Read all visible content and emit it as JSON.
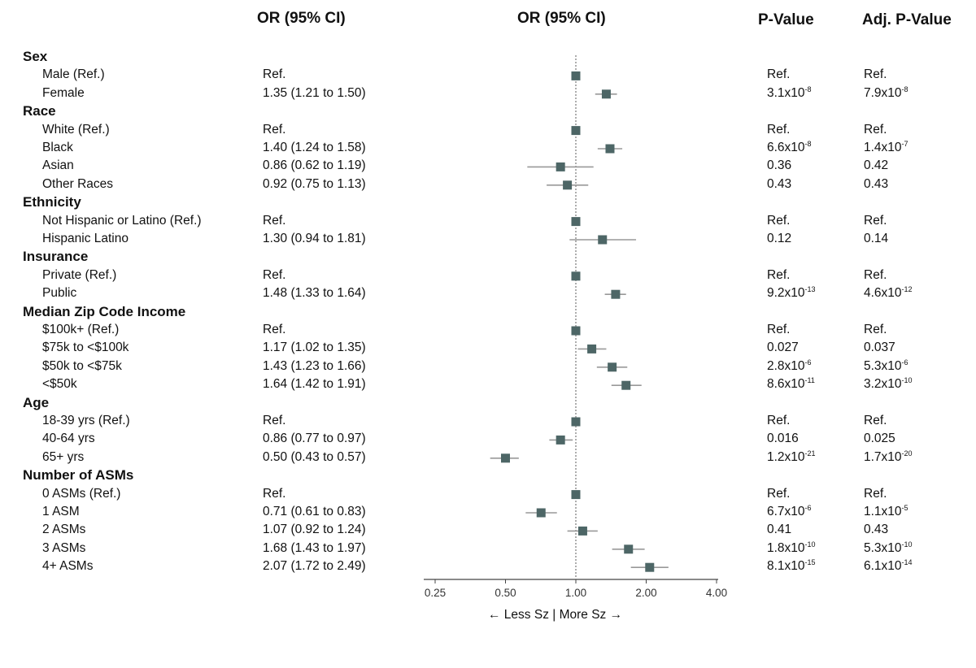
{
  "headers": {
    "or_text": "OR (95% CI)",
    "or_plot": "OR (95% CI)",
    "p_value": "P-Value",
    "adj_p_value": "Adj. P-Value"
  },
  "axis_note": "←   Less Sz | More Sz   →",
  "chart_data": {
    "type": "forest",
    "x_scale": "log2",
    "xlim": [
      0.25,
      4.0
    ],
    "x_ticks": [
      "0.25",
      "0.50",
      "1.00",
      "2.00",
      "4.00"
    ],
    "x_tick_values": [
      0.25,
      0.5,
      1.0,
      2.0,
      4.0
    ],
    "reference_line": 1.0,
    "marker_color": "#4d6666",
    "ci_color": "#999999",
    "groups": [
      {
        "name": "Sex",
        "rows": [
          {
            "label": "Male (Ref.)",
            "or_text": "Ref.",
            "or": 1.0,
            "lo": null,
            "hi": null,
            "p": "Ref.",
            "adj_p": "Ref."
          },
          {
            "label": "Female",
            "or_text": "1.35 (1.21 to 1.50)",
            "or": 1.35,
            "lo": 1.21,
            "hi": 1.5,
            "p": "3.1x10^-8",
            "adj_p": "7.9x10^-8"
          }
        ]
      },
      {
        "name": "Race",
        "rows": [
          {
            "label": "White (Ref.)",
            "or_text": "Ref.",
            "or": 1.0,
            "lo": null,
            "hi": null,
            "p": "Ref.",
            "adj_p": "Ref."
          },
          {
            "label": "Black",
            "or_text": "1.40 (1.24 to 1.58)",
            "or": 1.4,
            "lo": 1.24,
            "hi": 1.58,
            "p": "6.6x10^-8",
            "adj_p": "1.4x10^-7"
          },
          {
            "label": "Asian",
            "or_text": "0.86 (0.62 to 1.19)",
            "or": 0.86,
            "lo": 0.62,
            "hi": 1.19,
            "p": "0.36",
            "adj_p": "0.42"
          },
          {
            "label": "Other Races",
            "or_text": "0.92 (0.75 to 1.13)",
            "or": 0.92,
            "lo": 0.75,
            "hi": 1.13,
            "p": "0.43",
            "adj_p": "0.43"
          }
        ]
      },
      {
        "name": "Ethnicity",
        "rows": [
          {
            "label": "Not Hispanic or Latino (Ref.)",
            "or_text": "Ref.",
            "or": 1.0,
            "lo": null,
            "hi": null,
            "p": "Ref.",
            "adj_p": "Ref."
          },
          {
            "label": "Hispanic Latino",
            "or_text": "1.30 (0.94 to 1.81)",
            "or": 1.3,
            "lo": 0.94,
            "hi": 1.81,
            "p": "0.12",
            "adj_p": "0.14"
          }
        ]
      },
      {
        "name": "Insurance",
        "rows": [
          {
            "label": "Private (Ref.)",
            "or_text": "Ref.",
            "or": 1.0,
            "lo": null,
            "hi": null,
            "p": "Ref.",
            "adj_p": "Ref."
          },
          {
            "label": "Public",
            "or_text": "1.48 (1.33 to 1.64)",
            "or": 1.48,
            "lo": 1.33,
            "hi": 1.64,
            "p": "9.2x10^-13",
            "adj_p": "4.6x10^-12"
          }
        ]
      },
      {
        "name": "Median Zip Code Income",
        "rows": [
          {
            "label": "$100k+ (Ref.)",
            "or_text": "Ref.",
            "or": 1.0,
            "lo": null,
            "hi": null,
            "p": "Ref.",
            "adj_p": "Ref."
          },
          {
            "label": "$75k to <$100k",
            "or_text": "1.17 (1.02 to 1.35)",
            "or": 1.17,
            "lo": 1.02,
            "hi": 1.35,
            "p": "0.027",
            "adj_p": "0.037"
          },
          {
            "label": "$50k to <$75k",
            "or_text": "1.43 (1.23 to 1.66)",
            "or": 1.43,
            "lo": 1.23,
            "hi": 1.66,
            "p": "2.8x10^-6",
            "adj_p": "5.3x10^-6"
          },
          {
            "label": "<$50k",
            "or_text": "1.64 (1.42 to 1.91)",
            "or": 1.64,
            "lo": 1.42,
            "hi": 1.91,
            "p": "8.6x10^-11",
            "adj_p": "3.2x10^-10"
          }
        ]
      },
      {
        "name": "Age",
        "rows": [
          {
            "label": "18-39 yrs (Ref.)",
            "or_text": "Ref.",
            "or": 1.0,
            "lo": null,
            "hi": null,
            "p": "Ref.",
            "adj_p": "Ref."
          },
          {
            "label": "40-64 yrs",
            "or_text": "0.86 (0.77 to 0.97)",
            "or": 0.86,
            "lo": 0.77,
            "hi": 0.97,
            "p": "0.016",
            "adj_p": "0.025"
          },
          {
            "label": "65+ yrs",
            "or_text": "0.50 (0.43 to 0.57)",
            "or": 0.5,
            "lo": 0.43,
            "hi": 0.57,
            "p": "1.2x10^-21",
            "adj_p": "1.7x10^-20"
          }
        ]
      },
      {
        "name": "Number of ASMs",
        "rows": [
          {
            "label": "0 ASMs (Ref.)",
            "or_text": "Ref.",
            "or": 1.0,
            "lo": null,
            "hi": null,
            "p": "Ref.",
            "adj_p": "Ref."
          },
          {
            "label": "1 ASM",
            "or_text": "0.71 (0.61 to 0.83)",
            "or": 0.71,
            "lo": 0.61,
            "hi": 0.83,
            "p": "6.7x10^-6",
            "adj_p": "1.1x10^-5"
          },
          {
            "label": "2 ASMs",
            "or_text": "1.07 (0.92 to 1.24)",
            "or": 1.07,
            "lo": 0.92,
            "hi": 1.24,
            "p": "0.41",
            "adj_p": "0.43"
          },
          {
            "label": "3 ASMs",
            "or_text": "1.68 (1.43 to 1.97)",
            "or": 1.68,
            "lo": 1.43,
            "hi": 1.97,
            "p": "1.8x10^-10",
            "adj_p": "5.3x10^-10"
          },
          {
            "label": "4+ ASMs",
            "or_text": "2.07 (1.72 to 2.49)",
            "or": 2.07,
            "lo": 1.72,
            "hi": 2.49,
            "p": "8.1x10^-15",
            "adj_p": "6.1x10^-14"
          }
        ]
      }
    ]
  }
}
